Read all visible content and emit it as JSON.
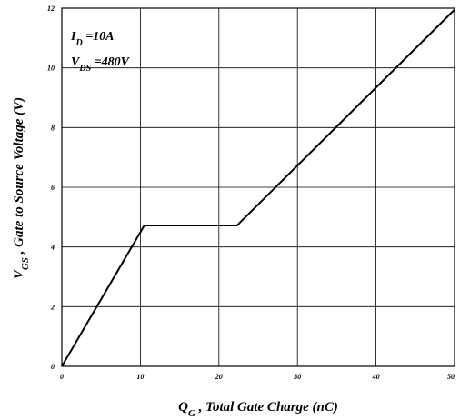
{
  "chart_data": {
    "type": "line",
    "title": "",
    "xlabel": {
      "main": "Q",
      "sub": "G",
      "rest": " , Total Gate Charge (nC)"
    },
    "ylabel": {
      "main": "V",
      "sub": "GS",
      "rest": " , Gate to Source Voltage (V)"
    },
    "xlim": [
      0,
      50
    ],
    "ylim": [
      0,
      12
    ],
    "xticks": [
      0,
      10,
      20,
      30,
      40,
      50
    ],
    "yticks": [
      0,
      2,
      4,
      6,
      8,
      10,
      12
    ],
    "grid": true,
    "annotations": [
      {
        "main": "I",
        "sub": "D",
        "rest": " =10A"
      },
      {
        "main": "V",
        "sub": "DS",
        "rest": " =480V"
      }
    ],
    "series": [
      {
        "x": [
          0,
          10.5,
          22.3,
          50
        ],
        "y": [
          0,
          4.72,
          4.72,
          11.95
        ]
      }
    ]
  }
}
